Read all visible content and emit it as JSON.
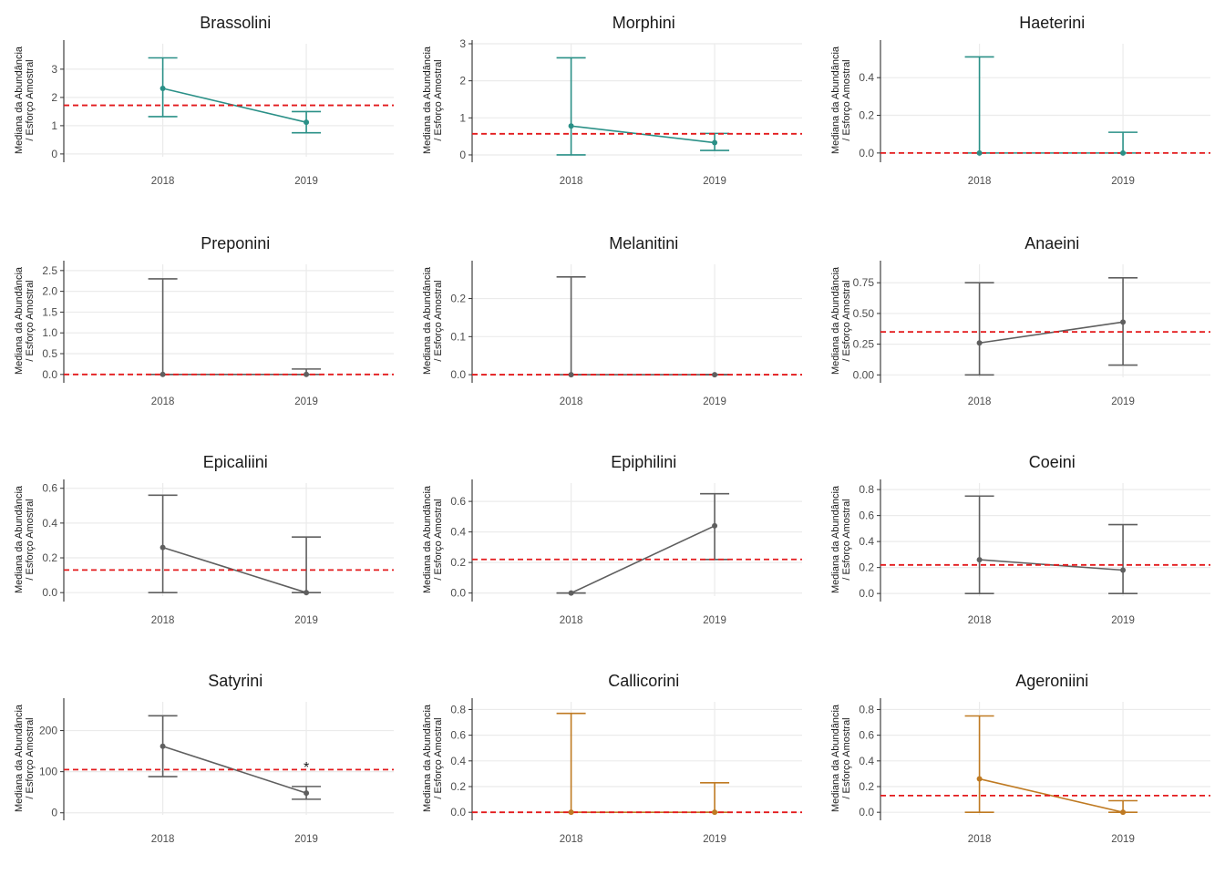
{
  "colors": {
    "teal": "#2a9087",
    "grey": "#5f5f5f",
    "orange": "#bf7a22",
    "reference_line": "#e31a1c",
    "grid": "#ebebeb"
  },
  "y_label_lines": [
    "Mediana da Abundância",
    "/ Esforço Amostral"
  ],
  "chart_data": [
    {
      "type": "line",
      "title": "Brassolini",
      "color": "teal",
      "x": [
        "2018",
        "2019"
      ],
      "y": [
        2.32,
        1.12
      ],
      "ymin": [
        1.32,
        0.75
      ],
      "ymax": [
        3.4,
        1.5
      ],
      "hline": 1.72,
      "ylim": [
        -0.1,
        3.9
      ],
      "yticks": [
        "0",
        "1",
        "2",
        "3"
      ],
      "ytick_values": [
        0,
        1,
        2,
        3
      ],
      "annotations": []
    },
    {
      "type": "line",
      "title": "Morphini",
      "color": "teal",
      "x": [
        "2018",
        "2019"
      ],
      "y": [
        0.78,
        0.33
      ],
      "ymin": [
        0.0,
        0.12
      ],
      "ymax": [
        2.62,
        0.58
      ],
      "hline": 0.57,
      "ylim": [
        -0.05,
        3.0
      ],
      "yticks": [
        "0",
        "1",
        "2",
        "3"
      ],
      "ytick_values": [
        0,
        1,
        2,
        3
      ],
      "annotations": []
    },
    {
      "type": "line",
      "title": "Haeterini",
      "color": "teal",
      "x": [
        "2018",
        "2019"
      ],
      "y": [
        0.0,
        0.0
      ],
      "ymin": [
        0.0,
        0.0
      ],
      "ymax": [
        0.51,
        0.11
      ],
      "hline": 0.0,
      "ylim": [
        -0.02,
        0.58
      ],
      "yticks": [
        "0.0",
        "0.2",
        "0.4"
      ],
      "ytick_values": [
        0,
        0.2,
        0.4
      ],
      "annotations": []
    },
    {
      "type": "line",
      "title": "Preponini",
      "color": "grey",
      "x": [
        "2018",
        "2019"
      ],
      "y": [
        0.0,
        0.0
      ],
      "ymin": [
        0.0,
        0.0
      ],
      "ymax": [
        2.3,
        0.13
      ],
      "hline": 0.0,
      "ylim": [
        -0.07,
        2.65
      ],
      "yticks": [
        "0.0",
        "0.5",
        "1.0",
        "1.5",
        "2.0",
        "2.5"
      ],
      "ytick_values": [
        0,
        0.5,
        1,
        1.5,
        2,
        2.5
      ],
      "annotations": []
    },
    {
      "type": "line",
      "title": "Melanitini",
      "color": "grey",
      "x": [
        "2018",
        "2019"
      ],
      "y": [
        0.0,
        0.0
      ],
      "ymin": [
        0.0,
        0.0
      ],
      "ymax": [
        0.257,
        0.0
      ],
      "hline": 0.0,
      "ylim": [
        -0.007,
        0.29
      ],
      "yticks": [
        "0.0",
        "0.1",
        "0.2"
      ],
      "ytick_values": [
        0,
        0.1,
        0.2
      ],
      "annotations": []
    },
    {
      "type": "line",
      "title": "Anaeini",
      "color": "grey",
      "x": [
        "2018",
        "2019"
      ],
      "y": [
        0.26,
        0.43
      ],
      "ymin": [
        0.0,
        0.08
      ],
      "ymax": [
        0.75,
        0.79
      ],
      "hline": 0.35,
      "ylim": [
        -0.02,
        0.9
      ],
      "yticks": [
        "0.00",
        "0.25",
        "0.50",
        "0.75"
      ],
      "ytick_values": [
        0,
        0.25,
        0.5,
        0.75
      ],
      "annotations": []
    },
    {
      "type": "line",
      "title": "Epicaliini",
      "color": "grey",
      "x": [
        "2018",
        "2019"
      ],
      "y": [
        0.26,
        0.0
      ],
      "ymin": [
        0.0,
        0.0
      ],
      "ymax": [
        0.56,
        0.32
      ],
      "hline": 0.13,
      "ylim": [
        -0.02,
        0.63
      ],
      "yticks": [
        "0.0",
        "0.2",
        "0.4",
        "0.6"
      ],
      "ytick_values": [
        0,
        0.2,
        0.4,
        0.6
      ],
      "annotations": []
    },
    {
      "type": "line",
      "title": "Epiphilini",
      "color": "grey",
      "x": [
        "2018",
        "2019"
      ],
      "y": [
        0.0,
        0.44
      ],
      "ymin": [
        0.0,
        0.22
      ],
      "ymax": [
        0.0,
        0.65
      ],
      "hline": 0.22,
      "ylim": [
        -0.02,
        0.72
      ],
      "yticks": [
        "0.0",
        "0.2",
        "0.4",
        "0.6"
      ],
      "ytick_values": [
        0,
        0.2,
        0.4,
        0.6
      ],
      "annotations": []
    },
    {
      "type": "line",
      "title": "Coeini",
      "color": "grey",
      "x": [
        "2018",
        "2019"
      ],
      "y": [
        0.26,
        0.18
      ],
      "ymin": [
        0.0,
        0.0
      ],
      "ymax": [
        0.75,
        0.53
      ],
      "hline": 0.22,
      "ylim": [
        -0.02,
        0.85
      ],
      "yticks": [
        "0.0",
        "0.2",
        "0.4",
        "0.6",
        "0.8"
      ],
      "ytick_values": [
        0,
        0.2,
        0.4,
        0.6,
        0.8
      ],
      "annotations": []
    },
    {
      "type": "line",
      "title": "Satyrini",
      "color": "grey",
      "x": [
        "2018",
        "2019"
      ],
      "y": [
        162,
        48
      ],
      "ymin": [
        88,
        33
      ],
      "ymax": [
        236,
        64
      ],
      "hline": 105,
      "ylim": [
        -5,
        270
      ],
      "yticks": [
        "0",
        "100",
        "200"
      ],
      "ytick_values": [
        0,
        100,
        200
      ],
      "annotations": [
        {
          "text": "*",
          "x": "2019",
          "y": 112
        }
      ]
    },
    {
      "type": "line",
      "title": "Callicorini",
      "color": "orange",
      "x": [
        "2018",
        "2019"
      ],
      "y": [
        0.0,
        0.0
      ],
      "ymin": [
        0.0,
        0.0
      ],
      "ymax": [
        0.77,
        0.23
      ],
      "hline": 0.0,
      "ylim": [
        -0.02,
        0.86
      ],
      "yticks": [
        "0.0",
        "0.2",
        "0.4",
        "0.6",
        "0.8"
      ],
      "ytick_values": [
        0,
        0.2,
        0.4,
        0.6,
        0.8
      ],
      "annotations": []
    },
    {
      "type": "line",
      "title": "Ageroniini",
      "color": "orange",
      "x": [
        "2018",
        "2019"
      ],
      "y": [
        0.26,
        0.0
      ],
      "ymin": [
        0.0,
        0.0
      ],
      "ymax": [
        0.75,
        0.09
      ],
      "hline": 0.13,
      "ylim": [
        -0.02,
        0.86
      ],
      "yticks": [
        "0.0",
        "0.2",
        "0.4",
        "0.6",
        "0.8"
      ],
      "ytick_values": [
        0,
        0.2,
        0.4,
        0.6,
        0.8
      ],
      "annotations": []
    }
  ]
}
